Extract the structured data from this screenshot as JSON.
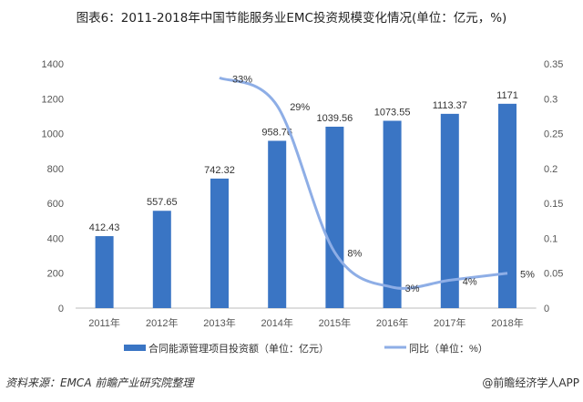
{
  "title": "图表6：2011-2018年中国节能服务业EMC投资规模变化情况(单位：亿元，%)",
  "source": "资料来源：EMCA 前瞻产业研究院整理",
  "credit": "@前瞻经济学人APP",
  "chart_data": {
    "type": "bar+line",
    "categories": [
      "2011年",
      "2012年",
      "2013年",
      "2014年",
      "2015年",
      "2016年",
      "2017年",
      "2018年"
    ],
    "series": [
      {
        "name": "合同能源管理项目投资额（单位：亿元）",
        "type": "bar",
        "axis": "left",
        "color": "#3a75c4",
        "values": [
          412.43,
          557.65,
          742.32,
          958.76,
          1039.56,
          1073.55,
          1113.37,
          1171
        ],
        "labels": [
          "412.43",
          "557.65",
          "742.32",
          "958.76",
          "1039.56",
          "1073.55",
          "1113.37",
          "1171"
        ]
      },
      {
        "name": "同比（单位：%）",
        "type": "line",
        "axis": "right",
        "color": "#8eaee6",
        "values": [
          null,
          null,
          0.33,
          0.29,
          0.08,
          0.03,
          0.04,
          0.05
        ],
        "labels": [
          "",
          "",
          "33%",
          "29%",
          "8%",
          "3%",
          "4%",
          "5%"
        ]
      }
    ],
    "y_left": {
      "range": [
        0,
        1400
      ],
      "ticks": [
        "0",
        "200",
        "400",
        "600",
        "800",
        "1000",
        "1200",
        "1400"
      ]
    },
    "y_right": {
      "range": [
        0,
        0.35
      ],
      "ticks": [
        "0",
        "0.05",
        "0.1",
        "0.15",
        "0.2",
        "0.25",
        "0.3",
        "0.35"
      ]
    },
    "grid": false,
    "legend": "bottom"
  }
}
